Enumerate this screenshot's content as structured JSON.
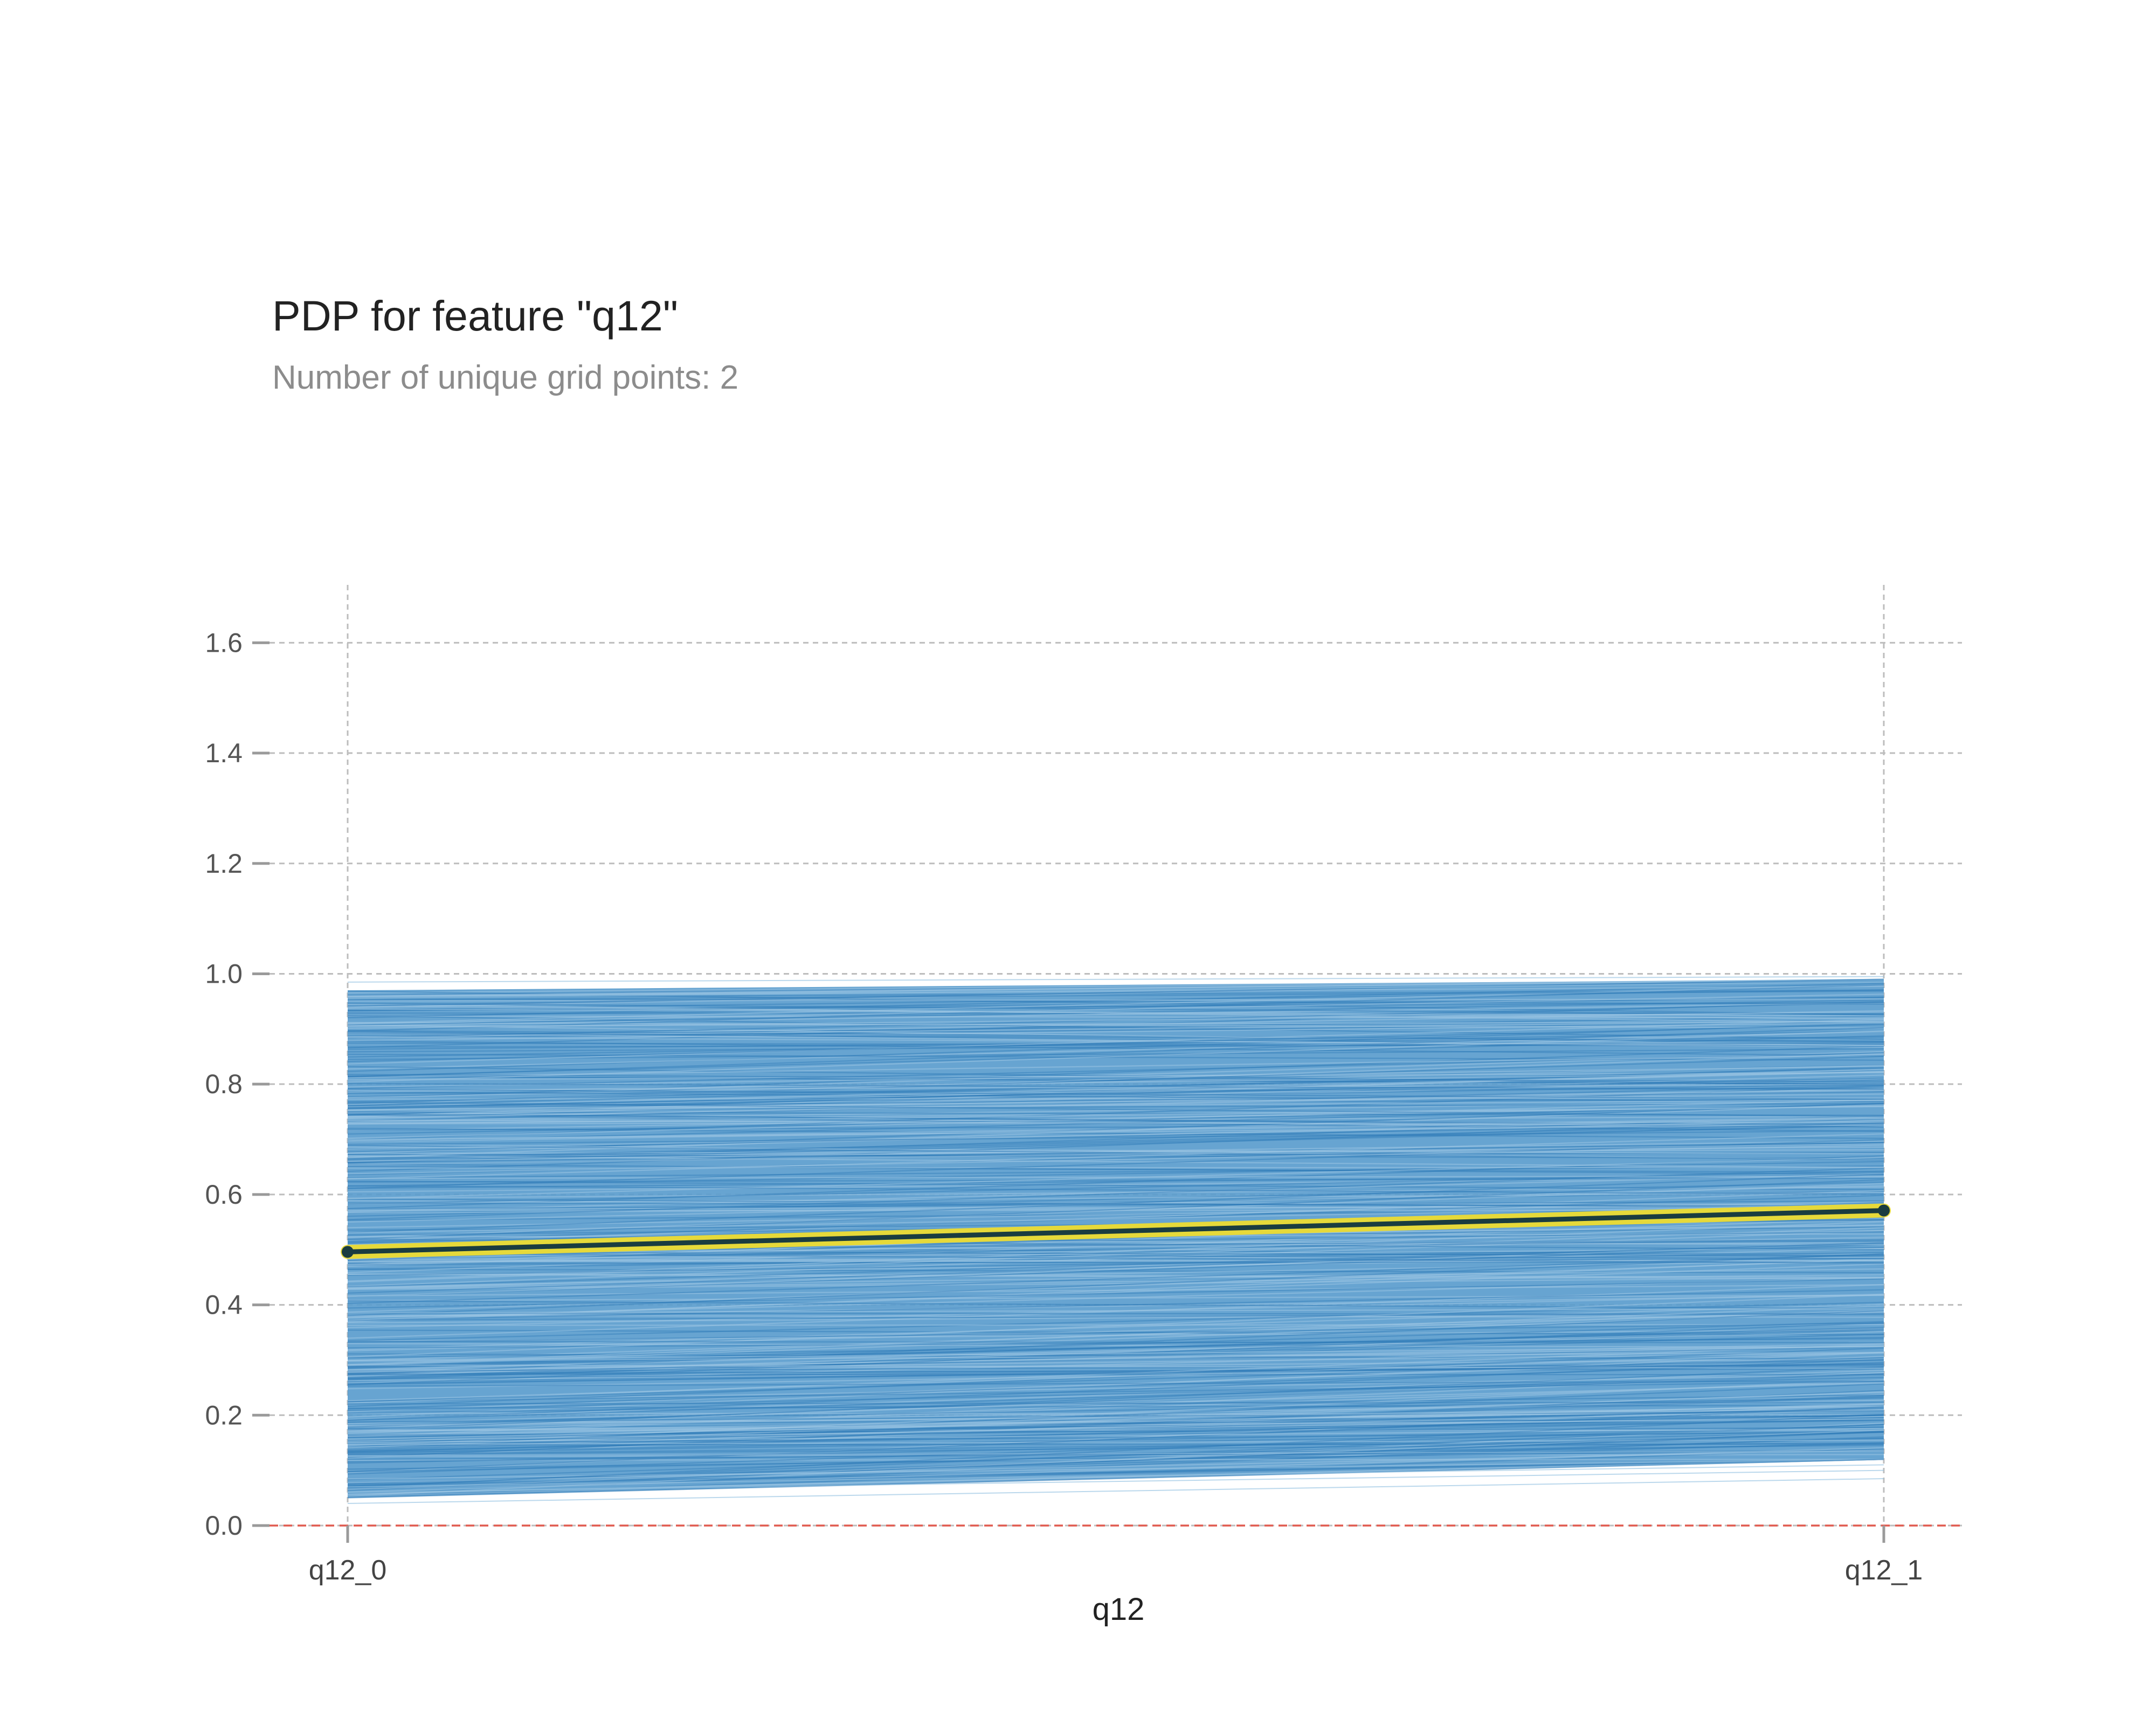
{
  "title": "PDP for feature \"q12\"",
  "subtitle": "Number of unique grid points: 2",
  "chart_data": {
    "type": "line",
    "xlabel": "q12",
    "ylabel": "",
    "categories": [
      "q12_0",
      "q12_1"
    ],
    "ylim": [
      0.0,
      1.7
    ],
    "yticks": [
      0.0,
      0.2,
      0.4,
      0.6,
      0.8,
      1.0,
      1.2,
      1.4,
      1.6
    ],
    "ytick_labels": [
      "0.0",
      "0.2",
      "0.4",
      "0.6",
      "0.8",
      "1.0",
      "1.2",
      "1.4",
      "1.6"
    ],
    "grid": true,
    "reference_line": {
      "y": 0.0,
      "style": "dashed",
      "color": "#e05a4f"
    },
    "pdp": {
      "values": [
        0.496,
        0.571
      ],
      "color": "#1a3c40",
      "highlight": "#e6d93a"
    },
    "ice_band": {
      "color": "#3a86c2",
      "lower": [
        0.05,
        0.12
      ],
      "upper": [
        0.97,
        0.99
      ]
    }
  }
}
